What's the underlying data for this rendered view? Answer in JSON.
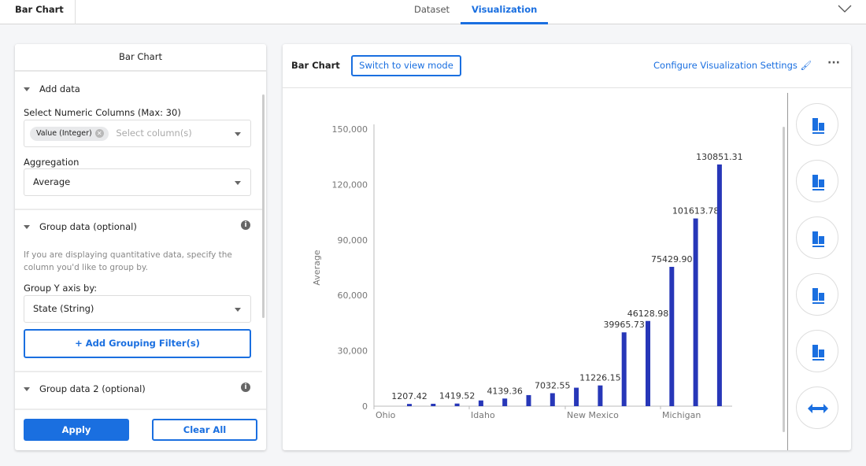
{
  "app_title": "Bar Chart",
  "tabs": [
    {
      "label": "Dataset"
    },
    {
      "label": "Visualization"
    }
  ],
  "left_panel": {
    "title": "Bar Chart",
    "add_data": {
      "title": "Add data",
      "columns_label": "Select Numeric Columns (Max: 30)",
      "chip": "Value (Integer)",
      "columns_placeholder": "Select column(s)",
      "aggregation_label": "Aggregation",
      "aggregation_value": "Average"
    },
    "group_data": {
      "title": "Group data (optional)",
      "help": "If you are displaying quantitative data, specify the column you'd like to group by.",
      "group_label": "Group Y axis by:",
      "group_value": "State (String)",
      "add_filter": "+ Add Grouping Filter(s)"
    },
    "group_data_2": {
      "title": "Group data 2 (optional)"
    },
    "apply": "Apply",
    "clear": "Clear All"
  },
  "main": {
    "title": "Bar Chart",
    "switch": "Switch to view mode",
    "configure": "Configure Visualization Settings",
    "more": "···"
  },
  "side_tools": [
    "merge-columns-icon",
    "sum-icon",
    "percent-100-icon",
    "trend-compare-icon",
    "sort-bars-icon",
    "swap-axes-icon"
  ],
  "chart_data": {
    "type": "bar",
    "ylabel": "Average",
    "ylim": [
      0,
      150000
    ],
    "yticks": [
      "0",
      "30,000",
      "60,000",
      "90,000",
      "120,000",
      "150,000"
    ],
    "ytick_values": [
      0,
      30000,
      60000,
      90000,
      120000,
      150000
    ],
    "x_tick_labels": [
      "Ohio",
      "Idaho",
      "New Mexico",
      "Michigan"
    ],
    "bar_color": "#2737b8",
    "values": [
      1207.42,
      1300,
      1419.52,
      3100,
      4139.36,
      6000,
      7032.55,
      10000,
      11226.15,
      39965.73,
      46128.98,
      75429.9,
      101613.78,
      130851.31
    ],
    "labels": [
      "1207.42",
      "",
      "1419.52",
      "",
      "4139.36",
      "",
      "7032.55",
      "",
      "11226.15",
      "39965.73",
      "46128.98",
      "75429.90",
      "101613.78",
      "130851.31"
    ]
  }
}
